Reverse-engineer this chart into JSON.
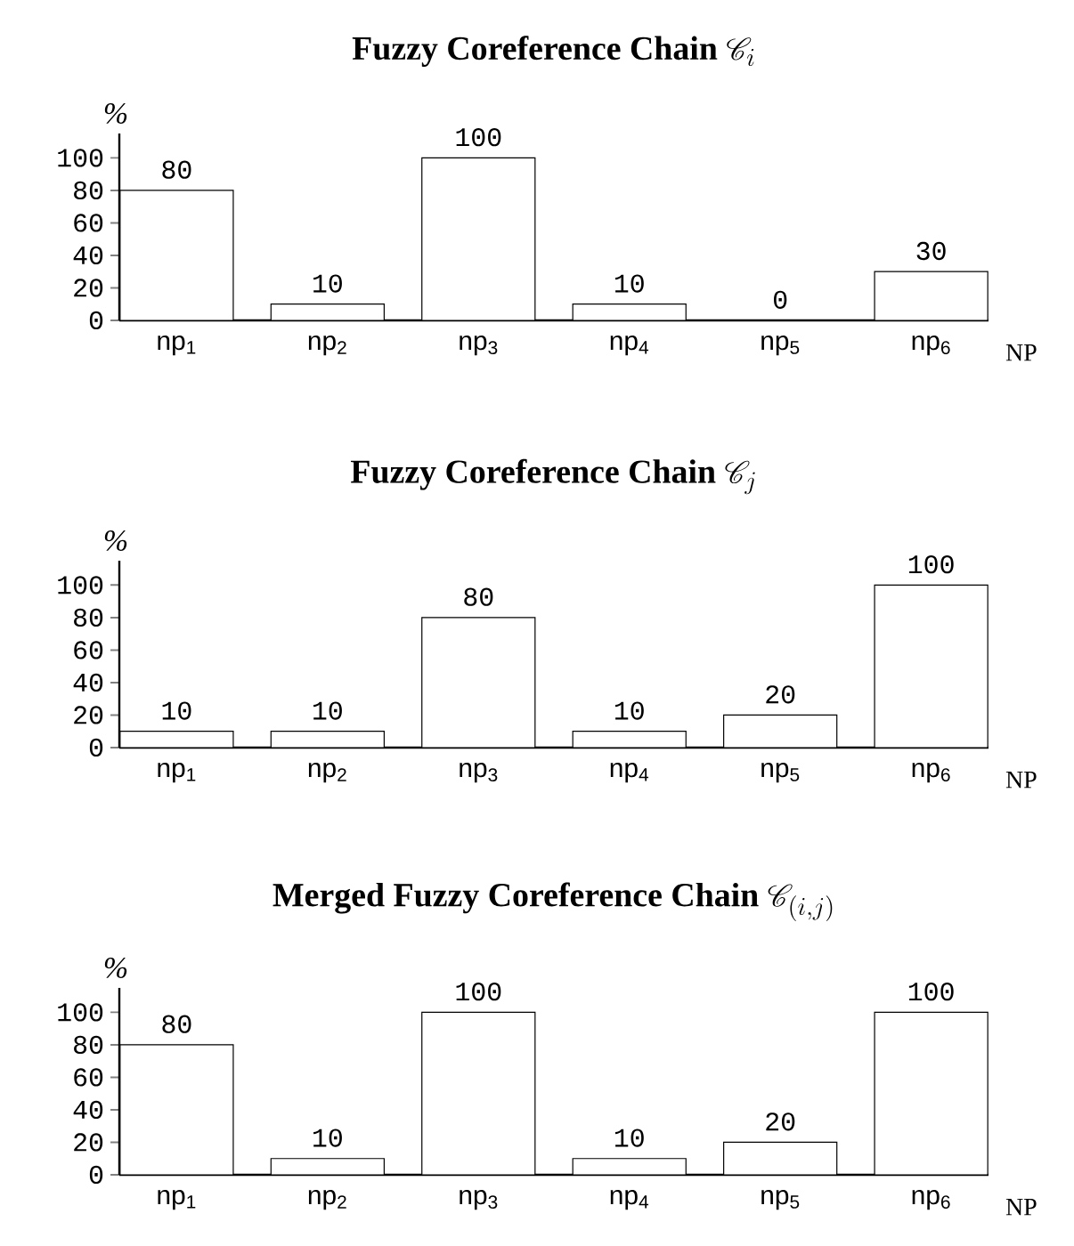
{
  "chart_data": [
    {
      "type": "bar",
      "title": "\\textbf{Fuzzy Coreference Chain}\\ \\mathscr{C}_i",
      "xlabel": "NP",
      "ylabel": "%",
      "categories": [
        "np$_{1}$",
        "np$_{2}$",
        "np$_{3}$",
        "np$_{4}$",
        "np$_{5}$",
        "np$_{6}$"
      ],
      "values": [
        80,
        10,
        100,
        10,
        0,
        30
      ],
      "color": "#000000",
      "ylim": [
        0,
        115
      ],
      "yticks": [
        0,
        20,
        40,
        60,
        80,
        100
      ],
      "data_labels": true
    },
    {
      "type": "bar",
      "title": "\\textbf{Fuzzy Coreference Chain}\\ \\mathscr{C}_j",
      "xlabel": "NP",
      "ylabel": "%",
      "categories": [
        "np$_{1}$",
        "np$_{2}$",
        "np$_{3}$",
        "np$_{4}$",
        "np$_{5}$",
        "np$_{6}$"
      ],
      "values": [
        10,
        10,
        80,
        10,
        20,
        100
      ],
      "color": "#000000",
      "ylim": [
        0,
        115
      ],
      "yticks": [
        0,
        20,
        40,
        60,
        80,
        100
      ],
      "data_labels": true
    },
    {
      "type": "bar",
      "title": "\\textbf{Merged Fuzzy Coreference Chain}\\ \\mathscr{C}_{(i,j)}",
      "xlabel": "NP",
      "ylabel": "%",
      "categories": [
        "np$_{1}$",
        "np$_{2}$",
        "np$_{3}$",
        "np$_{4}$",
        "np$_{5}$",
        "np$_{6}$"
      ],
      "values": [
        80,
        10,
        100,
        10,
        20,
        100
      ],
      "color": "#000000",
      "ylim": [
        0,
        115
      ],
      "yticks": [
        0,
        20,
        40,
        60,
        80,
        100
      ],
      "data_labels": true
    }
  ]
}
